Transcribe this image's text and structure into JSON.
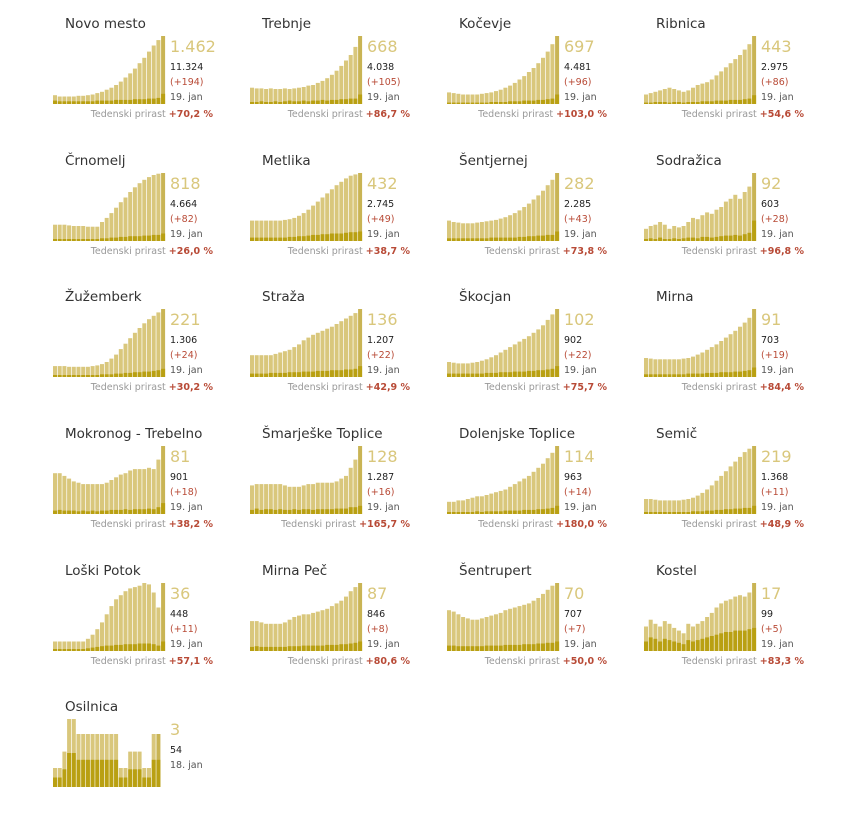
{
  "colors": {
    "bar": "#d9c77c",
    "bar_current": "#c9b454",
    "bar_dark": "#b9a012",
    "negative": "#b84a36",
    "muted": "#999999"
  },
  "growth_label": "Tedenski prirast",
  "chart_data": [
    {
      "type": "bar",
      "title": "Novo mesto",
      "active": "1.462",
      "total": "11.324",
      "change": "(+194)",
      "date": "19. jan",
      "growth": "+70,2 %",
      "values": [
        13,
        11,
        11,
        11,
        11,
        12,
        12,
        13,
        14,
        16,
        18,
        21,
        24,
        28,
        33,
        39,
        45,
        52,
        60,
        68,
        77,
        86,
        94,
        100
      ],
      "new": [
        5,
        4,
        4,
        4,
        4,
        4,
        4,
        4,
        4,
        5,
        5,
        5,
        5,
        6,
        6,
        6,
        6,
        7,
        7,
        7,
        8,
        8,
        9,
        15
      ]
    },
    {
      "type": "bar",
      "title": "Trebnje",
      "active": "668",
      "total": "4.038",
      "change": "(+105)",
      "date": "19. jan",
      "growth": "+86,7 %",
      "values": [
        24,
        23,
        23,
        22,
        23,
        22,
        22,
        23,
        22,
        23,
        24,
        25,
        27,
        28,
        31,
        34,
        38,
        43,
        49,
        56,
        64,
        72,
        84,
        100
      ],
      "new": [
        3,
        3,
        4,
        3,
        3,
        4,
        3,
        4,
        5,
        4,
        4,
        5,
        4,
        5,
        5,
        6,
        5,
        6,
        6,
        7,
        7,
        8,
        8,
        14
      ]
    },
    {
      "type": "bar",
      "title": "Kočevje",
      "active": "697",
      "total": "4.481",
      "change": "(+96)",
      "date": "19. jan",
      "growth": "+103,0 %",
      "values": [
        17,
        16,
        15,
        14,
        14,
        14,
        14,
        15,
        16,
        17,
        19,
        21,
        24,
        27,
        31,
        36,
        41,
        47,
        53,
        60,
        68,
        77,
        88,
        100
      ],
      "new": [
        2,
        2,
        2,
        2,
        2,
        2,
        2,
        2,
        2,
        3,
        3,
        3,
        3,
        4,
        4,
        4,
        5,
        5,
        5,
        6,
        6,
        7,
        8,
        14
      ]
    },
    {
      "type": "bar",
      "title": "Ribnica",
      "active": "443",
      "total": "2.975",
      "change": "(+86)",
      "date": "19. jan",
      "growth": "+54,6 %",
      "values": [
        14,
        16,
        18,
        20,
        22,
        24,
        22,
        20,
        18,
        20,
        24,
        28,
        30,
        32,
        36,
        42,
        48,
        54,
        60,
        66,
        72,
        80,
        88,
        100
      ],
      "new": [
        2,
        2,
        3,
        3,
        3,
        2,
        3,
        3,
        2,
        3,
        3,
        3,
        4,
        4,
        4,
        5,
        5,
        5,
        6,
        6,
        6,
        7,
        8,
        13
      ]
    },
    {
      "type": "bar",
      "title": "Črnomelj",
      "active": "818",
      "total": "4.664",
      "change": "(+82)",
      "date": "19. jan",
      "growth": "+26,0 %",
      "values": [
        24,
        24,
        24,
        23,
        22,
        22,
        22,
        21,
        21,
        21,
        28,
        34,
        41,
        49,
        57,
        64,
        72,
        79,
        85,
        90,
        94,
        97,
        99,
        100
      ],
      "new": [
        3,
        3,
        3,
        3,
        3,
        3,
        3,
        3,
        3,
        3,
        4,
        4,
        5,
        5,
        6,
        6,
        7,
        7,
        7,
        8,
        8,
        9,
        9,
        11
      ]
    },
    {
      "type": "bar",
      "title": "Metlika",
      "active": "432",
      "total": "2.745",
      "change": "(+49)",
      "date": "19. jan",
      "growth": "+38,7 %",
      "values": [
        30,
        30,
        30,
        30,
        30,
        30,
        30,
        31,
        32,
        34,
        37,
        41,
        46,
        52,
        58,
        64,
        70,
        76,
        82,
        87,
        92,
        96,
        98,
        100
      ],
      "new": [
        5,
        5,
        5,
        5,
        5,
        5,
        5,
        5,
        6,
        6,
        7,
        7,
        8,
        9,
        9,
        10,
        10,
        11,
        11,
        11,
        12,
        13,
        13,
        14
      ]
    },
    {
      "type": "bar",
      "title": "Šentjernej",
      "active": "282",
      "total": "2.285",
      "change": "(+43)",
      "date": "19. jan",
      "growth": "+73,8 %",
      "values": [
        30,
        28,
        27,
        26,
        26,
        26,
        27,
        28,
        29,
        30,
        31,
        33,
        35,
        38,
        41,
        45,
        50,
        55,
        61,
        67,
        74,
        82,
        90,
        100
      ],
      "new": [
        4,
        4,
        4,
        4,
        4,
        4,
        4,
        4,
        4,
        5,
        5,
        5,
        5,
        5,
        5,
        6,
        6,
        7,
        7,
        8,
        8,
        9,
        9,
        14
      ]
    },
    {
      "type": "bar",
      "title": "Sodražica",
      "active": "92",
      "total": "603",
      "change": "(+28)",
      "date": "19. jan",
      "growth": "+96,8 %",
      "values": [
        18,
        22,
        24,
        28,
        24,
        18,
        22,
        20,
        22,
        28,
        34,
        32,
        38,
        42,
        40,
        46,
        50,
        58,
        62,
        68,
        62,
        72,
        80,
        100
      ],
      "new": [
        3,
        4,
        3,
        5,
        3,
        3,
        4,
        3,
        4,
        5,
        5,
        4,
        6,
        6,
        5,
        6,
        7,
        8,
        8,
        9,
        8,
        10,
        12,
        30
      ]
    },
    {
      "type": "bar",
      "title": "Žužemberk",
      "active": "221",
      "total": "1.306",
      "change": "(+24)",
      "date": "19. jan",
      "growth": "+30,2 %",
      "values": [
        16,
        16,
        16,
        15,
        15,
        15,
        15,
        15,
        16,
        17,
        19,
        22,
        27,
        33,
        41,
        49,
        57,
        65,
        72,
        79,
        85,
        90,
        95,
        100
      ],
      "new": [
        3,
        3,
        3,
        3,
        3,
        3,
        3,
        3,
        3,
        3,
        4,
        4,
        4,
        5,
        5,
        6,
        6,
        7,
        7,
        8,
        8,
        9,
        10,
        12
      ]
    },
    {
      "type": "bar",
      "title": "Straža",
      "active": "136",
      "total": "1.207",
      "change": "(+22)",
      "date": "19. jan",
      "growth": "+42,9 %",
      "values": [
        32,
        32,
        32,
        32,
        32,
        34,
        36,
        38,
        40,
        44,
        48,
        54,
        58,
        62,
        65,
        68,
        71,
        74,
        78,
        82,
        86,
        90,
        94,
        100
      ],
      "new": [
        5,
        5,
        5,
        5,
        6,
        6,
        6,
        6,
        7,
        7,
        7,
        8,
        8,
        8,
        9,
        9,
        9,
        10,
        10,
        10,
        11,
        11,
        12,
        16
      ]
    },
    {
      "type": "bar",
      "title": "Škocjan",
      "active": "102",
      "total": "902",
      "change": "(+22)",
      "date": "19. jan",
      "growth": "+75,7 %",
      "values": [
        22,
        21,
        20,
        20,
        20,
        21,
        22,
        24,
        26,
        29,
        32,
        36,
        40,
        44,
        48,
        52,
        56,
        60,
        65,
        70,
        76,
        84,
        92,
        100
      ],
      "new": [
        5,
        5,
        5,
        5,
        5,
        5,
        5,
        5,
        6,
        6,
        6,
        7,
        7,
        7,
        8,
        8,
        8,
        9,
        9,
        10,
        10,
        11,
        12,
        16
      ]
    },
    {
      "type": "bar",
      "title": "Mirna",
      "active": "91",
      "total": "703",
      "change": "(+19)",
      "date": "19. jan",
      "growth": "+84,4 %",
      "values": [
        28,
        27,
        26,
        26,
        26,
        26,
        26,
        26,
        27,
        28,
        30,
        33,
        36,
        40,
        44,
        48,
        53,
        58,
        63,
        68,
        74,
        80,
        87,
        100
      ],
      "new": [
        4,
        4,
        4,
        4,
        4,
        4,
        4,
        4,
        4,
        5,
        5,
        5,
        5,
        6,
        6,
        6,
        7,
        7,
        7,
        8,
        8,
        9,
        10,
        14
      ]
    },
    {
      "type": "bar",
      "title": "Mokronog - Trebelno",
      "active": "81",
      "total": "901",
      "change": "(+18)",
      "date": "19. jan",
      "growth": "+38,2 %",
      "values": [
        60,
        60,
        56,
        52,
        48,
        46,
        44,
        44,
        44,
        44,
        44,
        46,
        50,
        54,
        58,
        60,
        64,
        66,
        66,
        66,
        68,
        66,
        80,
        100
      ],
      "new": [
        5,
        6,
        5,
        5,
        5,
        4,
        5,
        4,
        5,
        4,
        5,
        5,
        6,
        6,
        6,
        7,
        6,
        7,
        7,
        7,
        8,
        7,
        10,
        16
      ]
    },
    {
      "type": "bar",
      "title": "Šmarješke Toplice",
      "active": "128",
      "total": "1.287",
      "change": "(+16)",
      "date": "19. jan",
      "growth": "+165,7 %",
      "values": [
        42,
        44,
        44,
        44,
        44,
        44,
        44,
        42,
        40,
        40,
        40,
        42,
        44,
        44,
        46,
        46,
        46,
        46,
        48,
        52,
        56,
        68,
        80,
        100
      ],
      "new": [
        6,
        8,
        6,
        7,
        7,
        6,
        7,
        6,
        6,
        7,
        6,
        7,
        7,
        6,
        7,
        7,
        7,
        7,
        8,
        8,
        8,
        10,
        10,
        12
      ]
    },
    {
      "type": "bar",
      "title": "Dolenjske Toplice",
      "active": "114",
      "total": "963",
      "change": "(+14)",
      "date": "19. jan",
      "growth": "+180,0 %",
      "values": [
        18,
        18,
        20,
        20,
        22,
        24,
        26,
        26,
        28,
        30,
        32,
        34,
        36,
        40,
        44,
        48,
        52,
        56,
        62,
        68,
        74,
        82,
        90,
        100
      ],
      "new": [
        3,
        3,
        3,
        3,
        3,
        3,
        4,
        3,
        4,
        4,
        4,
        4,
        5,
        5,
        5,
        5,
        6,
        6,
        6,
        7,
        7,
        8,
        9,
        12
      ]
    },
    {
      "type": "bar",
      "title": "Semič",
      "active": "219",
      "total": "1.368",
      "change": "(+11)",
      "date": "19. jan",
      "growth": "+48,9 %",
      "values": [
        22,
        22,
        21,
        20,
        20,
        20,
        20,
        20,
        21,
        22,
        24,
        27,
        31,
        36,
        42,
        49,
        56,
        63,
        70,
        77,
        84,
        91,
        96,
        100
      ],
      "new": [
        3,
        3,
        3,
        3,
        3,
        3,
        3,
        3,
        3,
        3,
        4,
        4,
        4,
        5,
        5,
        6,
        6,
        7,
        7,
        8,
        8,
        9,
        9,
        12
      ]
    },
    {
      "type": "bar",
      "title": "Loški Potok",
      "active": "36",
      "total": "448",
      "change": "(+11)",
      "date": "19. jan",
      "growth": "+57,1 %",
      "values": [
        14,
        14,
        14,
        14,
        14,
        14,
        14,
        18,
        24,
        32,
        42,
        54,
        66,
        76,
        82,
        88,
        92,
        94,
        96,
        100,
        98,
        86,
        64,
        100
      ],
      "new": [
        3,
        3,
        3,
        3,
        3,
        3,
        3,
        4,
        5,
        6,
        7,
        8,
        8,
        9,
        9,
        10,
        10,
        10,
        11,
        11,
        11,
        10,
        8,
        14
      ]
    },
    {
      "type": "bar",
      "title": "Mirna Peč",
      "active": "87",
      "total": "846",
      "change": "(+8)",
      "date": "19. jan",
      "growth": "+80,6 %",
      "values": [
        44,
        44,
        42,
        40,
        40,
        40,
        40,
        42,
        46,
        50,
        52,
        54,
        54,
        56,
        58,
        60,
        62,
        66,
        70,
        74,
        80,
        88,
        94,
        100
      ],
      "new": [
        6,
        7,
        6,
        6,
        6,
        6,
        6,
        6,
        7,
        7,
        7,
        8,
        8,
        8,
        8,
        8,
        9,
        9,
        9,
        10,
        10,
        11,
        12,
        14
      ]
    },
    {
      "type": "bar",
      "title": "Šentrupert",
      "active": "70",
      "total": "707",
      "change": "(+7)",
      "date": "19. jan",
      "growth": "+50,0 %",
      "values": [
        60,
        58,
        54,
        50,
        48,
        46,
        46,
        48,
        50,
        52,
        54,
        56,
        60,
        62,
        64,
        66,
        68,
        70,
        74,
        78,
        84,
        90,
        96,
        100
      ],
      "new": [
        8,
        8,
        7,
        7,
        7,
        7,
        7,
        7,
        8,
        8,
        8,
        8,
        9,
        9,
        9,
        9,
        10,
        10,
        10,
        11,
        11,
        12,
        12,
        14
      ]
    },
    {
      "type": "bar",
      "title": "Kostel",
      "active": "17",
      "total": "99",
      "change": "(+5)",
      "date": "19. jan",
      "growth": "+83,3 %",
      "values": [
        36,
        46,
        40,
        36,
        44,
        40,
        34,
        30,
        26,
        40,
        36,
        40,
        44,
        50,
        56,
        64,
        70,
        74,
        76,
        80,
        82,
        80,
        86,
        100
      ],
      "new": [
        14,
        20,
        18,
        14,
        18,
        16,
        14,
        12,
        10,
        16,
        14,
        16,
        18,
        20,
        22,
        24,
        26,
        28,
        28,
        30,
        30,
        30,
        32,
        34
      ]
    },
    {
      "type": "bar",
      "title": "Osilnica",
      "active": "3",
      "total": "54",
      "change": "",
      "date": "18. jan",
      "growth": "",
      "values": [
        28,
        28,
        52,
        100,
        100,
        78,
        78,
        78,
        78,
        78,
        78,
        78,
        78,
        78,
        28,
        28,
        52,
        52,
        52,
        28,
        28,
        78,
        78
      ],
      "new": [
        14,
        14,
        26,
        50,
        50,
        40,
        40,
        40,
        40,
        40,
        40,
        40,
        40,
        40,
        14,
        14,
        26,
        26,
        26,
        14,
        14,
        40,
        40
      ]
    }
  ]
}
